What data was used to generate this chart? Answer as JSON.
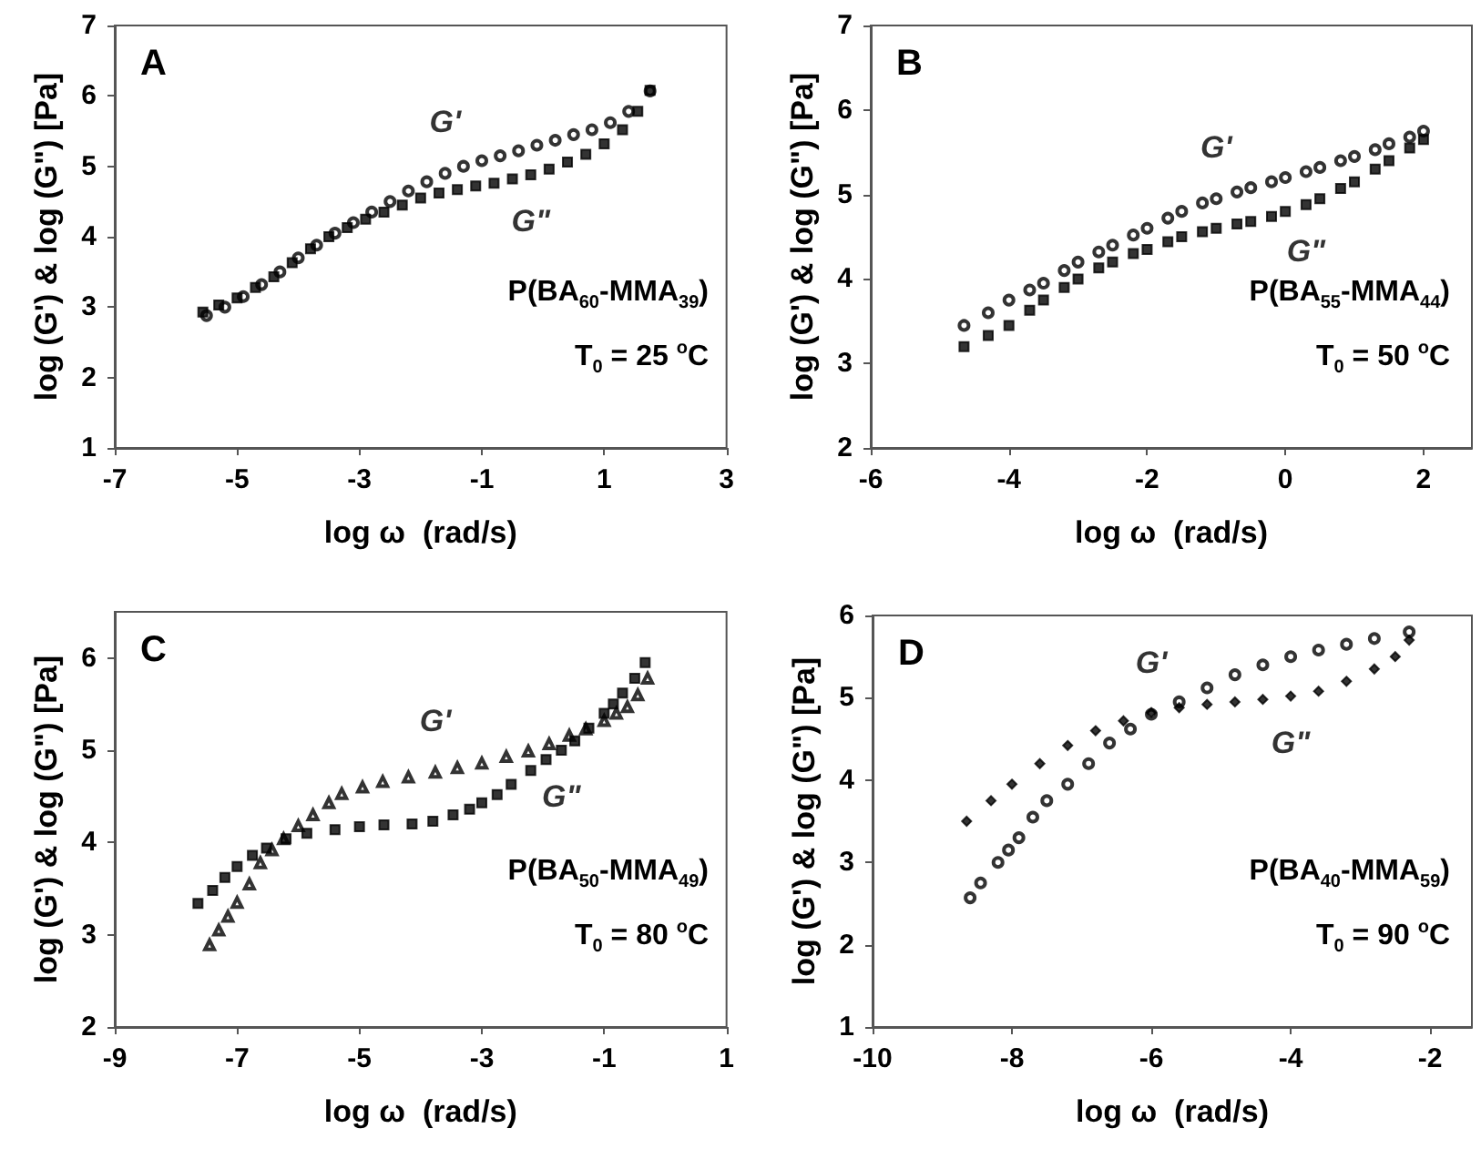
{
  "chart_data": [
    {
      "type": "scatter",
      "xlabel": "log ω  (rad/s)",
      "ylabel": "log (G') & log (G\") [Pa]",
      "xlim": [
        -7,
        3
      ],
      "xticks": [
        -7,
        -5,
        -3,
        -1,
        1,
        3
      ],
      "ylim": [
        1,
        7
      ],
      "yticks": [
        1,
        2,
        3,
        4,
        5,
        6,
        7
      ],
      "annotations": [
        "A",
        "P(BA$_{60}$-MMA$_{39}$)",
        "T$_{0}$ = 25 $^{o}$C"
      ],
      "series": [
        {
          "name": "G'",
          "marker": "circle",
          "color": "#000000",
          "x": [
            -5.5,
            -5.2,
            -4.9,
            -4.6,
            -4.3,
            -4.0,
            -3.7,
            -3.4,
            -3.1,
            -2.8,
            -2.5,
            -2.2,
            -1.9,
            -1.6,
            -1.3,
            -1.0,
            -0.7,
            -0.4,
            -0.1,
            0.2,
            0.5,
            0.8,
            1.1,
            1.4,
            1.75
          ],
          "values": [
            2.88,
            3.0,
            3.15,
            3.32,
            3.5,
            3.7,
            3.88,
            4.05,
            4.2,
            4.35,
            4.5,
            4.65,
            4.78,
            4.9,
            5.0,
            5.08,
            5.15,
            5.22,
            5.3,
            5.37,
            5.45,
            5.52,
            5.62,
            5.78,
            6.07
          ]
        },
        {
          "name": "G\"",
          "marker": "square",
          "color": "#000000",
          "x": [
            -5.56,
            -5.3,
            -5.0,
            -4.7,
            -4.4,
            -4.1,
            -3.8,
            -3.5,
            -3.2,
            -2.9,
            -2.6,
            -2.3,
            -2.0,
            -1.7,
            -1.4,
            -1.1,
            -0.8,
            -0.5,
            -0.2,
            0.1,
            0.4,
            0.7,
            1.0,
            1.3,
            1.55,
            1.75
          ],
          "values": [
            2.93,
            3.03,
            3.13,
            3.28,
            3.43,
            3.63,
            3.83,
            4.0,
            4.13,
            4.25,
            4.35,
            4.45,
            4.55,
            4.62,
            4.67,
            4.72,
            4.76,
            4.82,
            4.88,
            4.96,
            5.06,
            5.17,
            5.32,
            5.52,
            5.78,
            6.08
          ]
        }
      ]
    },
    {
      "type": "scatter",
      "xlabel": "log ω  (rad/s)",
      "ylabel": "log (G') & log (G\") [Pa]",
      "xlim": [
        -6,
        2.7
      ],
      "xticks": [
        -6,
        -4,
        -2,
        0,
        2
      ],
      "ylim": [
        2,
        7
      ],
      "yticks": [
        2,
        3,
        4,
        5,
        6,
        7
      ],
      "annotations": [
        "B",
        "P(BA$_{55}$-MMA$_{44}$)",
        "T$_{0}$ = 50 $^{o}$C"
      ],
      "series": [
        {
          "name": "G'",
          "marker": "circle",
          "color": "#000000",
          "x": [
            -4.65,
            -4.3,
            -4.0,
            -3.7,
            -3.5,
            -3.2,
            -3.0,
            -2.7,
            -2.5,
            -2.2,
            -2.0,
            -1.7,
            -1.5,
            -1.2,
            -1.0,
            -0.7,
            -0.5,
            -0.2,
            0.0,
            0.3,
            0.5,
            0.8,
            1.0,
            1.3,
            1.5,
            1.8,
            2.0
          ],
          "values": [
            3.45,
            3.6,
            3.75,
            3.87,
            3.95,
            4.1,
            4.2,
            4.32,
            4.4,
            4.52,
            4.6,
            4.72,
            4.8,
            4.9,
            4.95,
            5.03,
            5.08,
            5.15,
            5.2,
            5.27,
            5.32,
            5.4,
            5.45,
            5.53,
            5.6,
            5.68,
            5.75
          ]
        },
        {
          "name": "G\"",
          "marker": "square",
          "color": "#000000",
          "x": [
            -4.65,
            -4.3,
            -4.0,
            -3.7,
            -3.5,
            -3.2,
            -3.0,
            -2.7,
            -2.5,
            -2.2,
            -2.0,
            -1.7,
            -1.5,
            -1.2,
            -1.0,
            -0.7,
            -0.5,
            -0.2,
            0.0,
            0.3,
            0.5,
            0.8,
            1.0,
            1.3,
            1.5,
            1.8,
            2.0
          ],
          "values": [
            3.2,
            3.33,
            3.45,
            3.63,
            3.75,
            3.9,
            4.0,
            4.13,
            4.2,
            4.3,
            4.35,
            4.44,
            4.5,
            4.56,
            4.6,
            4.65,
            4.68,
            4.74,
            4.8,
            4.88,
            4.95,
            5.07,
            5.15,
            5.3,
            5.4,
            5.55,
            5.65
          ]
        }
      ]
    },
    {
      "type": "scatter",
      "xlabel": "log ω  (rad/s)",
      "ylabel": "log (G') & log (G\") [Pa]",
      "xlim": [
        -9,
        1
      ],
      "xticks": [
        -9,
        -7,
        -5,
        -3,
        -1,
        1
      ],
      "ylim": [
        2,
        6.5
      ],
      "yticks": [
        2,
        3,
        4,
        5,
        6
      ],
      "annotations": [
        "C",
        "P(BA$_{50}$-MMA$_{49}$)",
        "T$_{0}$ = 80 $^{o}$C"
      ],
      "series": [
        {
          "name": "G'",
          "marker": "triangle",
          "color": "#000000",
          "x": [
            -7.45,
            -7.3,
            -7.15,
            -7.0,
            -6.8,
            -6.62,
            -6.43,
            -6.24,
            -6.0,
            -5.76,
            -5.5,
            -5.29,
            -4.95,
            -4.62,
            -4.2,
            -3.76,
            -3.4,
            -3.0,
            -2.6,
            -2.24,
            -1.9,
            -1.57,
            -1.3,
            -1.0,
            -0.8,
            -0.62,
            -0.45,
            -0.29
          ],
          "values": [
            2.89,
            3.05,
            3.2,
            3.35,
            3.55,
            3.78,
            3.92,
            4.04,
            4.18,
            4.3,
            4.43,
            4.53,
            4.6,
            4.66,
            4.71,
            4.76,
            4.81,
            4.86,
            4.93,
            4.99,
            5.07,
            5.16,
            5.23,
            5.32,
            5.4,
            5.47,
            5.6,
            5.78
          ]
        },
        {
          "name": "G\"",
          "marker": "square",
          "color": "#000000",
          "x": [
            -7.64,
            -7.4,
            -7.2,
            -7.0,
            -6.75,
            -6.52,
            -6.2,
            -5.86,
            -5.4,
            -5.0,
            -4.6,
            -4.14,
            -3.8,
            -3.47,
            -3.2,
            -3.0,
            -2.75,
            -2.52,
            -2.2,
            -1.95,
            -1.7,
            -1.48,
            -1.25,
            -1.0,
            -0.85,
            -0.7,
            -0.5,
            -0.33
          ],
          "values": [
            3.34,
            3.48,
            3.62,
            3.74,
            3.86,
            3.94,
            4.04,
            4.1,
            4.14,
            4.17,
            4.19,
            4.2,
            4.23,
            4.3,
            4.36,
            4.43,
            4.52,
            4.63,
            4.78,
            4.9,
            5.0,
            5.1,
            5.24,
            5.4,
            5.5,
            5.62,
            5.78,
            5.95
          ]
        }
      ]
    },
    {
      "type": "scatter",
      "xlabel": "log ω  (rad/s)",
      "ylabel": "log (G') & log (G\") [Pa]",
      "xlim": [
        -10,
        -1.4
      ],
      "xticks": [
        -10,
        -8,
        -6,
        -4,
        -2
      ],
      "ylim": [
        1,
        6
      ],
      "yticks": [
        1,
        2,
        3,
        4,
        5,
        6
      ],
      "annotations": [
        "D",
        "P(BA$_{40}$-MMA$_{59}$)",
        "T$_{0}$ = 90 $^{o}$C"
      ],
      "series": [
        {
          "name": "G'",
          "marker": "circle",
          "color": "#000000",
          "x": [
            -8.6,
            -8.45,
            -8.2,
            -8.05,
            -7.9,
            -7.7,
            -7.5,
            -7.2,
            -6.9,
            -6.6,
            -6.3,
            -6.0,
            -5.6,
            -5.2,
            -4.8,
            -4.4,
            -4.0,
            -3.6,
            -3.2,
            -2.8,
            -2.3
          ],
          "values": [
            2.57,
            2.75,
            3.0,
            3.15,
            3.3,
            3.55,
            3.75,
            3.95,
            4.2,
            4.45,
            4.62,
            4.8,
            4.95,
            5.12,
            5.28,
            5.4,
            5.5,
            5.58,
            5.65,
            5.72,
            5.8
          ]
        },
        {
          "name": "G\"",
          "marker": "diamond",
          "color": "#000000",
          "x": [
            -8.65,
            -8.3,
            -8.0,
            -7.6,
            -7.2,
            -6.8,
            -6.4,
            -6.0,
            -5.6,
            -5.2,
            -4.8,
            -4.4,
            -4.0,
            -3.6,
            -3.2,
            -2.8,
            -2.5,
            -2.3
          ],
          "values": [
            3.5,
            3.75,
            3.95,
            4.2,
            4.42,
            4.6,
            4.72,
            4.82,
            4.88,
            4.92,
            4.95,
            4.98,
            5.02,
            5.08,
            5.2,
            5.35,
            5.5,
            5.7
          ]
        }
      ]
    }
  ]
}
